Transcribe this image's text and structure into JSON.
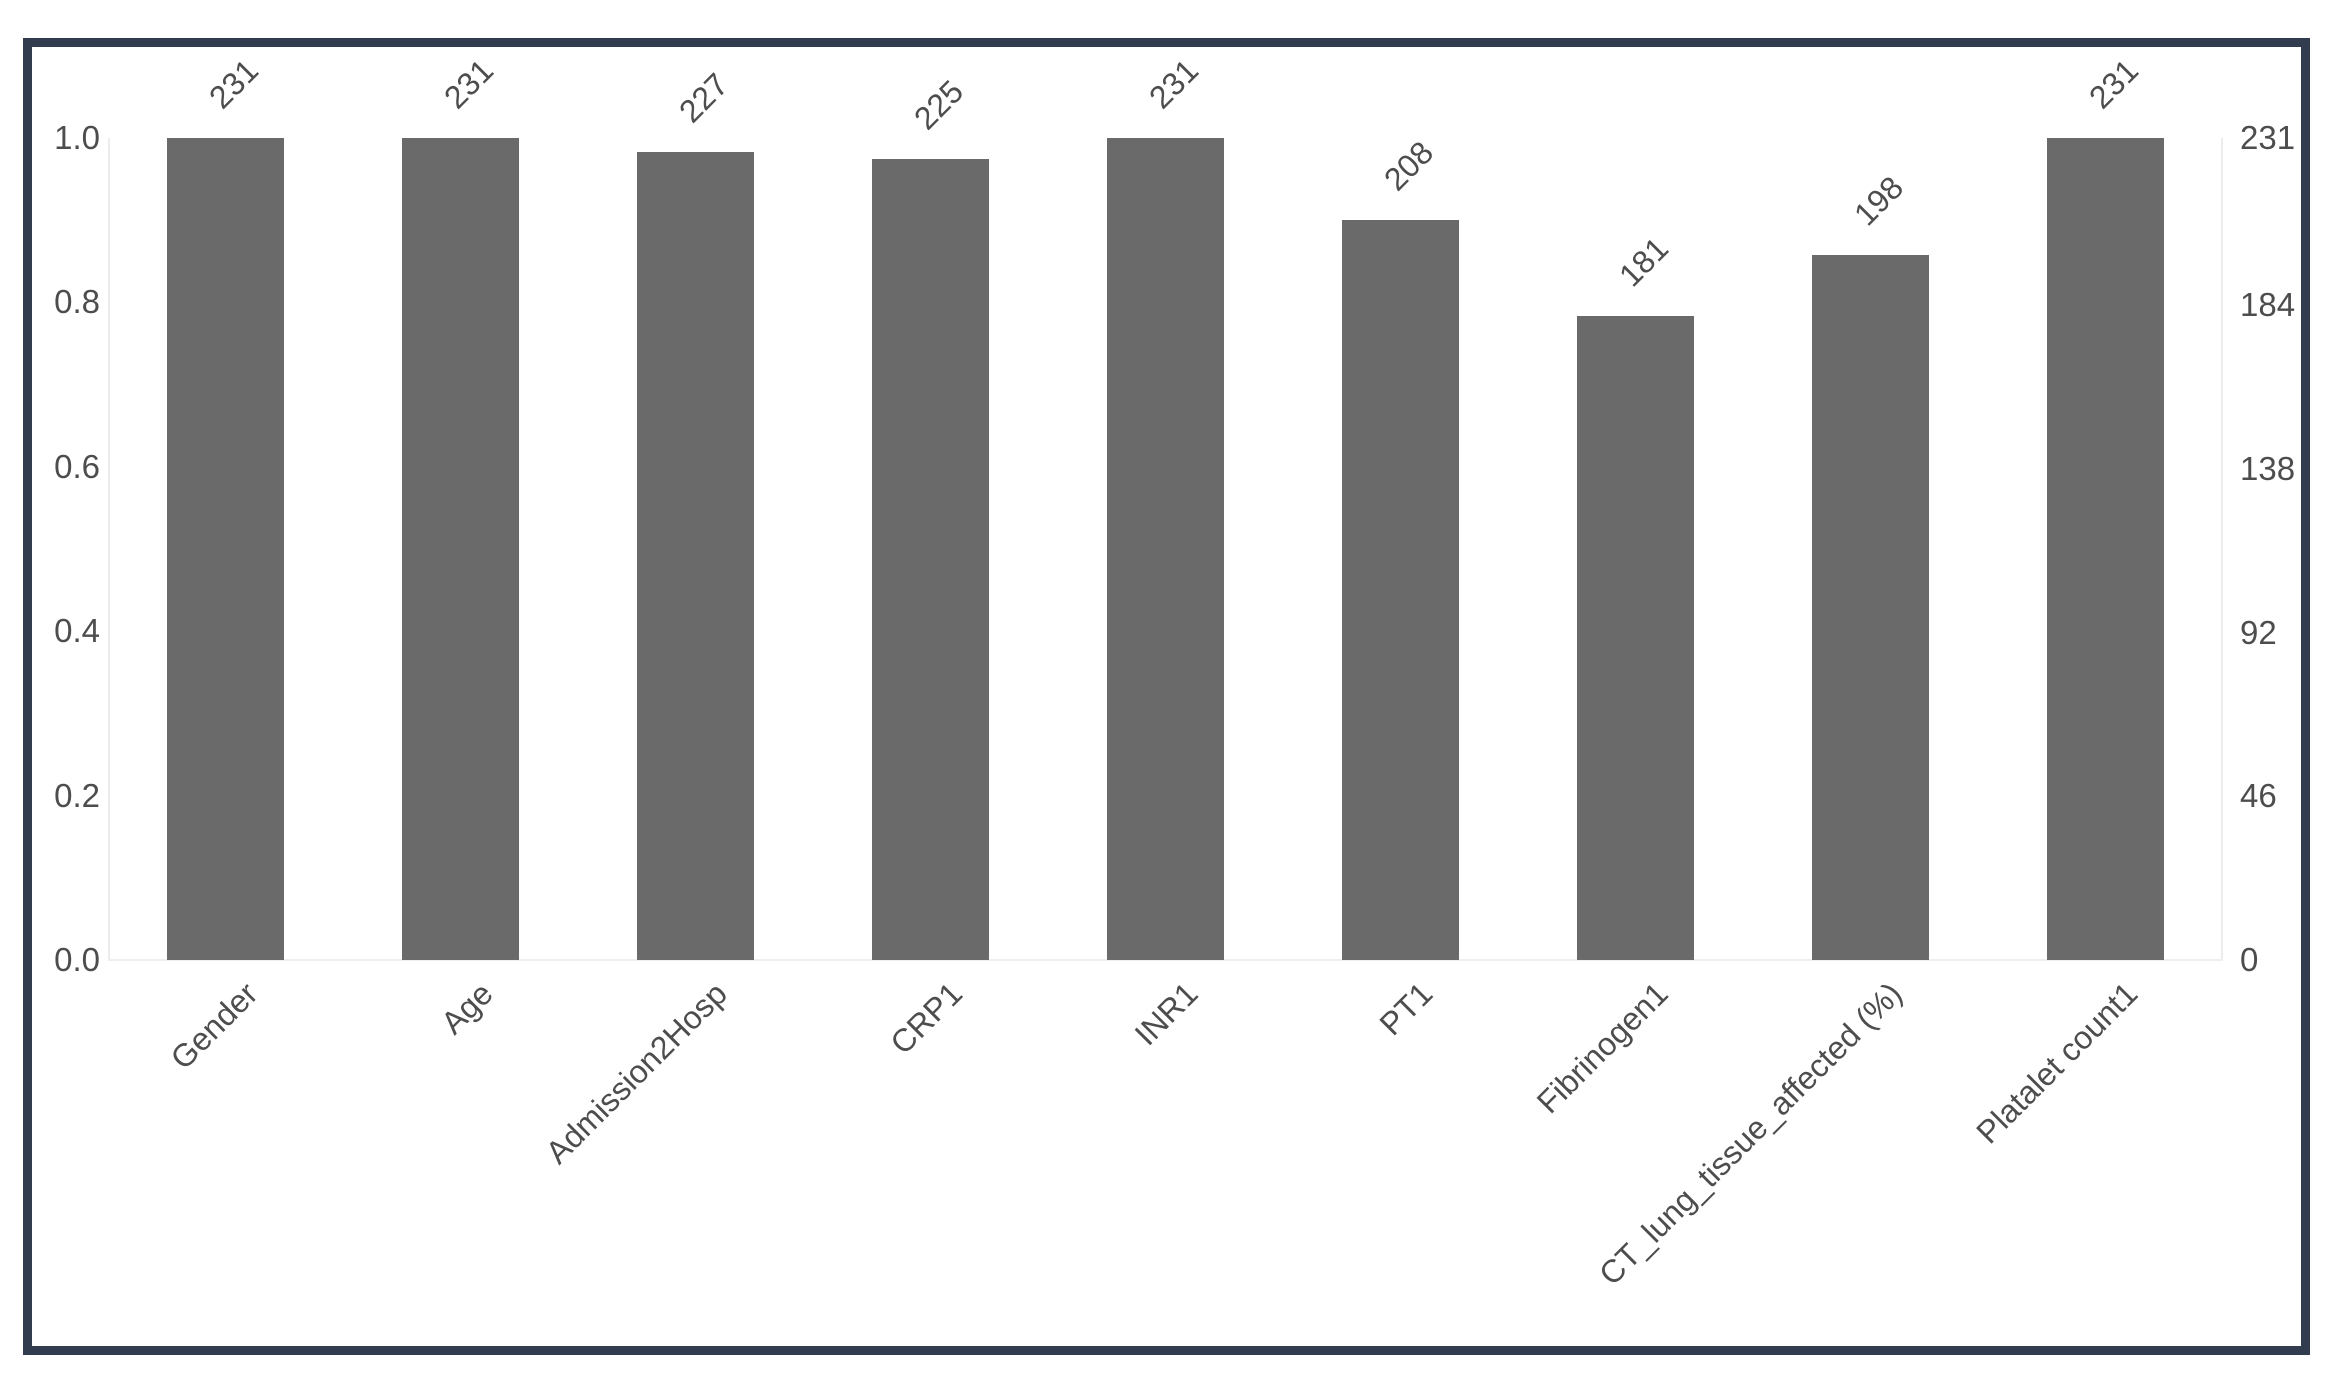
{
  "figure": {
    "background": "#ffffff",
    "frame_border_color": "#313c4e",
    "bar_color": "#6a6a6a",
    "text_color": "#4d4d4d",
    "spine_color": "#ececec"
  },
  "chart_data": {
    "type": "bar",
    "title": "",
    "xlabel": "",
    "ylabel": "",
    "categories": [
      "Gender",
      "Age",
      "Admission2Hosp",
      "CRP1",
      "INR1",
      "PT1",
      "Fibrinogen1",
      "CT_lung_tissue_affected (%)",
      "Platalet count1"
    ],
    "values": [
      231,
      231,
      227,
      225,
      231,
      208,
      181,
      198,
      231
    ],
    "bar_value_labels": [
      "231",
      "231",
      "227",
      "225",
      "231",
      "208",
      "181",
      "198",
      "231"
    ],
    "left_axis": {
      "tick_labels": [
        "1.0",
        "0.8",
        "0.6",
        "0.4",
        "0.2",
        "0.0"
      ],
      "tick_values": [
        1.0,
        0.8,
        0.6,
        0.4,
        0.2,
        0.0
      ],
      "range": [
        0.0,
        1.0
      ]
    },
    "right_axis": {
      "tick_labels": [
        "231",
        "184",
        "138",
        "92",
        "46",
        "0"
      ],
      "tick_values": [
        231,
        184,
        138,
        92,
        46,
        0
      ],
      "range": [
        0,
        231
      ]
    },
    "x_tick_rotation_deg": 45,
    "value_label_rotation_deg": 45,
    "bar_width_fraction": 0.5,
    "grid": false,
    "legend_position": null
  }
}
